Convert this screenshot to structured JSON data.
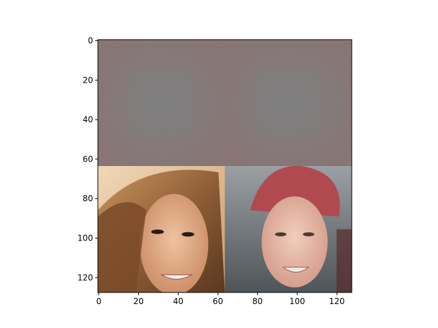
{
  "chart_data": {
    "type": "image",
    "title": "",
    "xlabel": "",
    "ylabel": "",
    "xlim": [
      -0.5,
      127.5
    ],
    "ylim": [
      127.5,
      -0.5
    ],
    "x_ticks": [
      0,
      20,
      40,
      60,
      80,
      100,
      120
    ],
    "y_ticks": [
      0,
      20,
      40,
      60,
      80,
      100,
      120
    ],
    "grid": false,
    "legend": "none",
    "image_grid": {
      "rows": 2,
      "cols": 2,
      "tile_size": 64,
      "tiles": [
        {
          "row": 0,
          "col": 0,
          "content": "noise-pattern",
          "color": "#857a7a"
        },
        {
          "row": 0,
          "col": 1,
          "content": "noise-pattern",
          "color": "#827c7c"
        },
        {
          "row": 1,
          "col": 0,
          "content": "face-portrait",
          "color": "#b07a50"
        },
        {
          "row": 1,
          "col": 1,
          "content": "face-portrait",
          "color": "#c07868"
        }
      ]
    },
    "colors": {
      "noise_base": "#808080",
      "noise_tint": "#8a7474",
      "hair_brown": "#8a5a34",
      "hair_light": "#c9955f",
      "skin_warm": "#e0a888",
      "hair_red": "#b04a50",
      "skin_pale": "#e8b8a6",
      "bg_gray": "#6e7478"
    }
  }
}
